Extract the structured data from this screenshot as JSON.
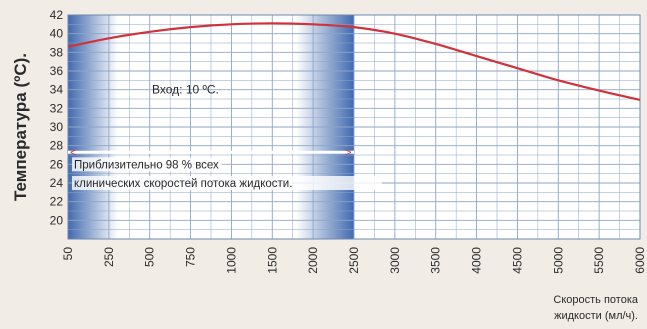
{
  "chart_data": {
    "type": "line",
    "title": "",
    "ylabel": "Температура (ºC).",
    "xlabel_lines": [
      "Скорость потока",
      "жидкости (мл/ч)."
    ],
    "x_tick_labels": [
      "50",
      "250",
      "500",
      "750",
      "1000",
      "1500",
      "2000",
      "2500",
      "3000",
      "3500",
      "4000",
      "4500",
      "5000",
      "5500",
      "6000"
    ],
    "ylim": [
      18,
      42
    ],
    "y_ticks": [
      20,
      22,
      24,
      26,
      28,
      30,
      32,
      34,
      36,
      38,
      40,
      42
    ],
    "grid": true,
    "series": [
      {
        "color": "#d0333a",
        "x": [
          "50",
          "250",
          "500",
          "750",
          "1000",
          "1500",
          "2000",
          "2500",
          "3000",
          "3500",
          "4000",
          "4500",
          "5000",
          "5500",
          "6000"
        ],
        "values": [
          38.6,
          39.5,
          40.2,
          40.7,
          41.0,
          41.1,
          41.0,
          40.7,
          40.0,
          38.9,
          37.6,
          36.3,
          35.0,
          33.9,
          32.9
        ]
      }
    ],
    "annotations": {
      "inlet": "Вход: 10 ºC.",
      "range_note_lines": [
        "Приблизительно 98 % всех",
        "клинических скоростей потока жидкости."
      ],
      "range_from": "50",
      "range_to": "2500",
      "arrow_left": "<",
      "arrow_right": ">"
    },
    "colors": {
      "background": "#f1ece6",
      "plot_bg": "#ffffff",
      "grid": "#8ea5c5",
      "band_edge": "#1f4fa0",
      "line": "#d0333a"
    }
  }
}
